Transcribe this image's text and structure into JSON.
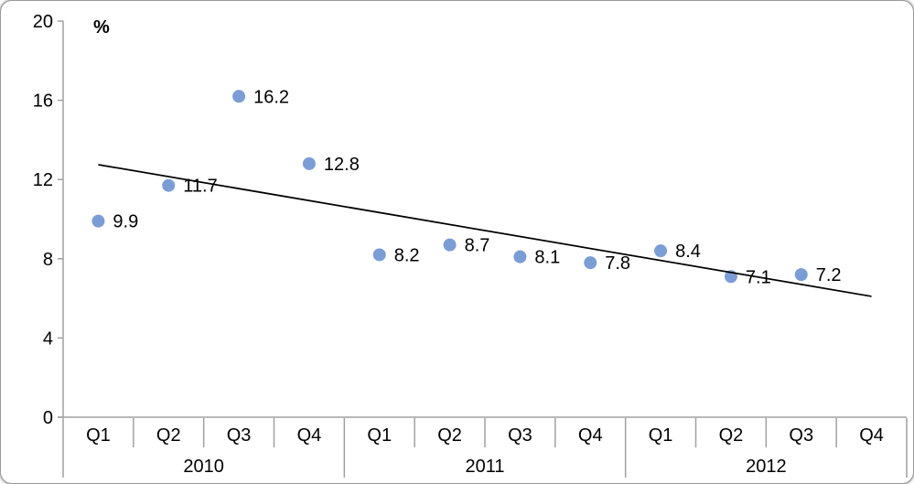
{
  "chart_data": {
    "type": "scatter",
    "title": "",
    "ylabel": "%",
    "xlabel": "",
    "ylim": [
      0,
      20
    ],
    "yticks": [
      0,
      4,
      8,
      12,
      16,
      20
    ],
    "grid": false,
    "legend": "none",
    "data_labels": true,
    "quarters_per_year": [
      "Q1",
      "Q2",
      "Q3",
      "Q4"
    ],
    "years": [
      "2010",
      "2011",
      "2012"
    ],
    "points": [
      {
        "year": "2010",
        "quarter": "Q1",
        "value": 9.9
      },
      {
        "year": "2010",
        "quarter": "Q2",
        "value": 11.7
      },
      {
        "year": "2010",
        "quarter": "Q3",
        "value": 16.2
      },
      {
        "year": "2010",
        "quarter": "Q4",
        "value": 12.8
      },
      {
        "year": "2011",
        "quarter": "Q1",
        "value": 8.2
      },
      {
        "year": "2011",
        "quarter": "Q2",
        "value": 8.7
      },
      {
        "year": "2011",
        "quarter": "Q3",
        "value": 8.1
      },
      {
        "year": "2011",
        "quarter": "Q4",
        "value": 7.8
      },
      {
        "year": "2012",
        "quarter": "Q1",
        "value": 8.4
      },
      {
        "year": "2012",
        "quarter": "Q2",
        "value": 7.1
      },
      {
        "year": "2012",
        "quarter": "Q3",
        "value": 7.2
      },
      {
        "year": "2012",
        "quarter": "Q4",
        "value": null
      }
    ],
    "trendline": {
      "type": "linear",
      "start_value": 12.75,
      "end_value": 6.1
    },
    "colors": {
      "marker": "#7b9dd6",
      "trend": "#000000",
      "axis": "#a0a0a0",
      "text": "#000000",
      "background": "#ffffff"
    }
  }
}
